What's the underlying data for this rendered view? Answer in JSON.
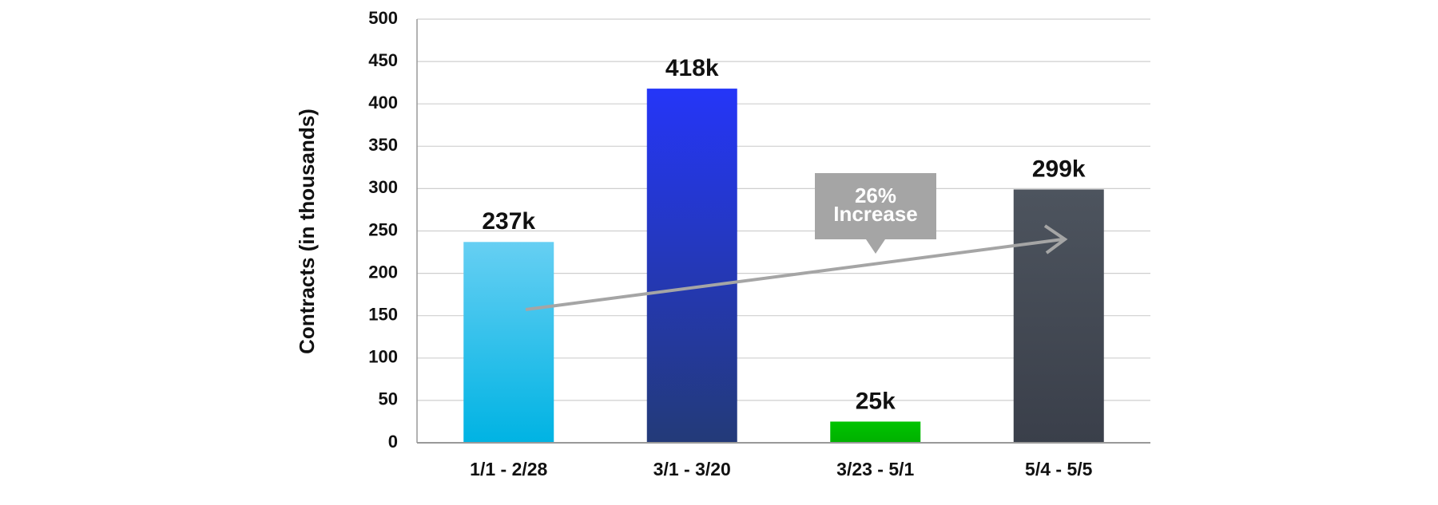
{
  "chart_data": {
    "type": "bar",
    "y_label": "Contracts (in thousands)",
    "categories": [
      "1/1 - 2/28",
      "3/1 - 3/20",
      "3/23 - 5/1",
      "5/4 - 5/5"
    ],
    "values": [
      237,
      418,
      25,
      299
    ],
    "value_labels": [
      "237k",
      "418k",
      "25k",
      "299k"
    ],
    "gradients": [
      [
        "#66cff3",
        "#00b3e3"
      ],
      [
        "#2536f8",
        "#233a78"
      ],
      [
        "#00c400",
        "#00b000"
      ],
      [
        "#4d545e",
        "#3a3f4a"
      ]
    ],
    "ylim": [
      0,
      500
    ],
    "yticks": [
      0,
      50,
      100,
      150,
      200,
      250,
      300,
      350,
      400,
      450,
      500
    ],
    "grid": true,
    "annotation": [
      "26%",
      "Increase"
    ]
  }
}
